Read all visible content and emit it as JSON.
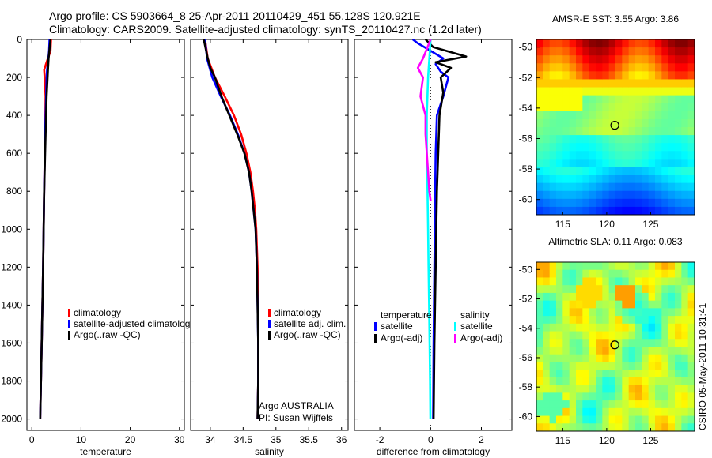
{
  "figure": {
    "title_line1": "Argo profile: CS 5903664_8 25-Apr-2011 20110429_451 55.128S 120.921E",
    "title_line2": "Climatology: CARS2009. Satellite-adjusted climatology: synTS_20110427.nc (1.2d later)",
    "side_label": "CSIRO 05-May-2011 10:31:41"
  },
  "colors": {
    "climatology": "#ff0000",
    "satellite": "#0000ff",
    "argo": "#000000",
    "salinity_satellite": "#00ffff",
    "salinity_argo": "#ff00ff"
  },
  "chart_data": [
    {
      "type": "line",
      "id": "temperature",
      "xlabel": "temperature",
      "xlim": [
        -1,
        31
      ],
      "ylim": [
        0,
        2060
      ],
      "y_reversed": true,
      "xticks": [
        0,
        10,
        20,
        30
      ],
      "yticks": [
        0,
        200,
        400,
        600,
        800,
        1000,
        1200,
        1400,
        1600,
        1800,
        2000
      ],
      "series": [
        {
          "name": "climatology",
          "color_key": "climatology",
          "depth": [
            0,
            60,
            120,
            160,
            200,
            300,
            500,
            800,
            1200,
            1600,
            2000
          ],
          "values": [
            3.9,
            3.8,
            3.0,
            2.5,
            2.6,
            2.8,
            2.7,
            2.5,
            2.3,
            2.0,
            1.7
          ]
        },
        {
          "name": "satellite-adjusted climatology",
          "color_key": "satellite",
          "depth": [
            0,
            60,
            120,
            160,
            200,
            300,
            500,
            800,
            1200,
            1600,
            2000
          ],
          "values": [
            3.6,
            3.5,
            3.3,
            3.1,
            3.0,
            2.9,
            2.7,
            2.5,
            2.3,
            2.0,
            1.7
          ]
        },
        {
          "name": "Argo(..raw -QC)",
          "color_key": "argo",
          "depth": [
            0,
            50,
            100,
            150,
            200,
            300,
            500,
            800,
            1200,
            1600,
            2000
          ],
          "values": [
            3.8,
            3.6,
            3.4,
            3.3,
            3.2,
            3.0,
            2.8,
            2.5,
            2.3,
            2.0,
            1.7
          ]
        }
      ],
      "legend": [
        "climatology",
        "satellite-adjusted climatology",
        "Argo(..raw -QC)"
      ]
    },
    {
      "type": "line",
      "id": "salinity",
      "xlabel": "salinity",
      "xlim": [
        33.7,
        36.1
      ],
      "ylim": [
        0,
        2060
      ],
      "y_reversed": true,
      "xticks": [
        34,
        34.5,
        35,
        35.5,
        36
      ],
      "series": [
        {
          "name": "climatology",
          "color_key": "climatology",
          "depth": [
            0,
            100,
            200,
            300,
            400,
            500,
            600,
            700,
            800,
            900,
            1000,
            1200,
            1400,
            1600,
            1800,
            2000
          ],
          "values": [
            33.92,
            33.96,
            34.07,
            34.22,
            34.36,
            34.47,
            34.55,
            34.61,
            34.65,
            34.68,
            34.7,
            34.72,
            34.73,
            34.73,
            34.73,
            34.72
          ]
        },
        {
          "name": "satellite adj. clim.",
          "color_key": "satellite",
          "depth": [
            0,
            100,
            200,
            300,
            400,
            500,
            600,
            700,
            800,
            900,
            1000,
            1200,
            1400,
            1600,
            1800,
            2000
          ],
          "values": [
            33.92,
            33.95,
            34.03,
            34.16,
            34.3,
            34.42,
            34.52,
            34.59,
            34.63,
            34.66,
            34.69,
            34.71,
            34.72,
            34.73,
            34.73,
            34.72
          ]
        },
        {
          "name": "Argo(..raw -QC)",
          "color_key": "argo",
          "depth": [
            0,
            50,
            100,
            150,
            200,
            250,
            300,
            400,
            500,
            600,
            700,
            800,
            900,
            1000,
            1200,
            1400,
            1600,
            1800,
            2000
          ],
          "values": [
            33.9,
            33.93,
            33.96,
            34.0,
            34.07,
            34.12,
            34.17,
            34.29,
            34.41,
            34.52,
            34.59,
            34.63,
            34.66,
            34.69,
            34.71,
            34.72,
            34.73,
            34.73,
            34.72
          ]
        }
      ],
      "legend": [
        "climatology",
        "satellite adj. clim.",
        "Argo(..raw -QC)"
      ],
      "annotation": [
        "Argo AUSTRALIA",
        "PI: Susan Wijffels"
      ]
    },
    {
      "type": "line",
      "id": "difference",
      "xlabel": "difference from climatology",
      "xlim": [
        -3,
        3.2
      ],
      "ylim": [
        0,
        2060
      ],
      "y_reversed": true,
      "xticks": [
        -2,
        0,
        2
      ],
      "zero_line": true,
      "series": [
        {
          "name": "temperature satellite",
          "color_key": "satellite",
          "depth": [
            0,
            20,
            60,
            100,
            130,
            170,
            200,
            300,
            400,
            600,
            800,
            1200,
            1600,
            2000
          ],
          "values": [
            -0.7,
            -0.5,
            0.0,
            0.5,
            0.2,
            0.4,
            0.7,
            0.5,
            0.25,
            0.2,
            0.18,
            0.15,
            0.12,
            0.1
          ]
        },
        {
          "name": "temperature Argo(-adj)",
          "color_key": "argo",
          "depth": [
            0,
            40,
            90,
            120,
            150,
            200,
            280,
            400,
            600,
            800,
            1200,
            1600,
            2000
          ],
          "values": [
            -0.2,
            0.1,
            1.4,
            0.2,
            0.8,
            0.4,
            0.5,
            0.35,
            0.3,
            0.25,
            0.2,
            0.15,
            0.12
          ]
        },
        {
          "name": "salinity satellite",
          "color_key": "salinity_satellite",
          "depth": [
            0,
            200,
            400,
            600,
            800,
            1000,
            1200,
            1400,
            1600,
            1800,
            2000
          ],
          "values": [
            0.0,
            -0.1,
            -0.15,
            -0.15,
            -0.12,
            -0.1,
            -0.08,
            -0.06,
            -0.04,
            -0.02,
            -0.01
          ]
        },
        {
          "name": "salinity Argo(-adj)",
          "color_key": "salinity_argo",
          "depth": [
            0,
            100,
            150,
            200,
            300,
            350,
            400,
            500,
            600,
            700,
            800,
            850
          ],
          "values": [
            0.0,
            -0.3,
            -0.5,
            -0.3,
            -0.4,
            -0.3,
            -0.2,
            -0.2,
            -0.15,
            -0.1,
            -0.05,
            0.0
          ]
        }
      ],
      "legend_groups": [
        {
          "title": "temperature",
          "items": [
            "satellite",
            "Argo(-adj)"
          ],
          "color_keys": [
            "satellite",
            "argo"
          ]
        },
        {
          "title": "salinity",
          "items": [
            "satellite",
            "Argo(-adj)"
          ],
          "color_keys": [
            "salinity_satellite",
            "salinity_argo"
          ]
        }
      ]
    },
    {
      "type": "heatmap",
      "id": "sst_map",
      "title": "AMSR-E SST: 3.55 Argo: 3.86",
      "xlim": [
        112,
        130
      ],
      "ylim": [
        -61,
        -49.5
      ],
      "xticks": [
        115,
        120,
        125
      ],
      "yticks": [
        -50,
        -52,
        -54,
        -56,
        -58,
        -60
      ],
      "xticklabels": [
        "115",
        "120",
        "125"
      ],
      "yticklabels": [
        "-50",
        "-52",
        "-54",
        "-56",
        "-58",
        "-60"
      ],
      "marker": {
        "lon": 120.921,
        "lat": -55.128
      }
    },
    {
      "type": "heatmap",
      "id": "sla_map",
      "title": "Altimetric SLA: 0.11 Argo: 0.083",
      "xlim": [
        112,
        130
      ],
      "ylim": [
        -61,
        -49.5
      ],
      "xticks": [
        115,
        120,
        125
      ],
      "yticks": [
        -50,
        -52,
        -54,
        -56,
        -58,
        -60
      ],
      "xticklabels": [
        "115",
        "120",
        "125"
      ],
      "yticklabels": [
        "-50",
        "-52",
        "-54",
        "-56",
        "-58",
        "-60"
      ],
      "marker": {
        "lon": 120.921,
        "lat": -55.128
      }
    }
  ]
}
